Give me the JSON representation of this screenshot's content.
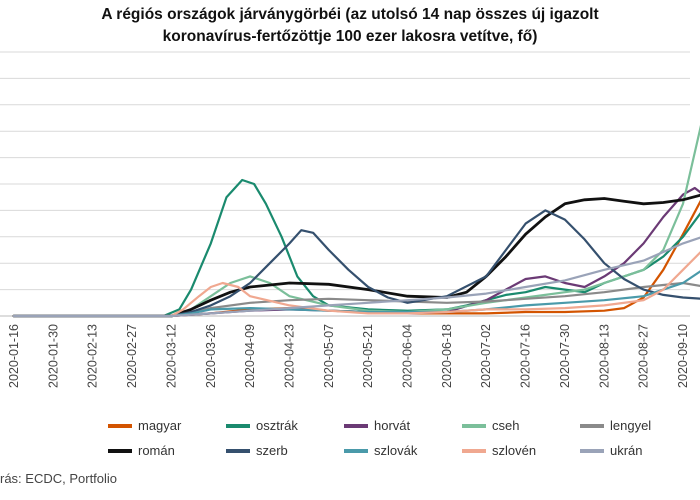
{
  "title_line1": "A régiós országok járványgörbéi (az utolsó 14 nap összes új igazolt",
  "title_line2": "koronavírus-fertőzöttje 100 ezer lakosra vetítve, fő)",
  "source": "rás: ECDC, Portfolio",
  "chart_data": {
    "type": "line",
    "categories": [
      "2020-01-16",
      "2020-01-30",
      "2020-02-13",
      "2020-02-27",
      "2020-03-12",
      "2020-03-26",
      "2020-04-09",
      "2020-04-23",
      "2020-05-07",
      "2020-05-21",
      "2020-06-04",
      "2020-06-18",
      "2020-07-02",
      "2020-07-16",
      "2020-07-30",
      "2020-08-13",
      "2020-08-27",
      "2020-09-10"
    ],
    "ylim": [
      0,
      200
    ],
    "grid": true,
    "legend_position": "bottom",
    "series": [
      {
        "name": "magyar",
        "color": "#d35400",
        "points": [
          [
            0,
            0
          ],
          [
            4,
            0
          ],
          [
            5,
            2
          ],
          [
            6,
            5
          ],
          [
            7,
            6
          ],
          [
            8,
            4
          ],
          [
            9,
            3
          ],
          [
            10,
            2
          ],
          [
            11,
            2
          ],
          [
            12,
            2
          ],
          [
            13,
            3
          ],
          [
            14,
            3
          ],
          [
            15,
            4
          ],
          [
            15.5,
            6
          ],
          [
            16,
            14
          ],
          [
            16.5,
            35
          ],
          [
            17,
            62
          ],
          [
            17.5,
            90
          ],
          [
            18,
            103
          ]
        ]
      },
      {
        "name": "osztrák",
        "color": "#1a8a6e",
        "points": [
          [
            0,
            0
          ],
          [
            3.8,
            0
          ],
          [
            4.2,
            5
          ],
          [
            4.5,
            20
          ],
          [
            5,
            55
          ],
          [
            5.4,
            90
          ],
          [
            5.8,
            103
          ],
          [
            6.1,
            100
          ],
          [
            6.4,
            85
          ],
          [
            6.8,
            60
          ],
          [
            7.2,
            30
          ],
          [
            7.6,
            15
          ],
          [
            8,
            8
          ],
          [
            9,
            5
          ],
          [
            10,
            4
          ],
          [
            11,
            5
          ],
          [
            11.5,
            8
          ],
          [
            12,
            12
          ],
          [
            12.5,
            16
          ],
          [
            13,
            18
          ],
          [
            13.5,
            22
          ],
          [
            14,
            20
          ],
          [
            14.5,
            18
          ],
          [
            15,
            25
          ],
          [
            15.5,
            30
          ],
          [
            16,
            35
          ],
          [
            16.5,
            45
          ],
          [
            17,
            60
          ],
          [
            17.5,
            80
          ],
          [
            17.7,
            103
          ]
        ]
      },
      {
        "name": "horvát",
        "color": "#6b3a75",
        "points": [
          [
            0,
            0
          ],
          [
            4,
            0
          ],
          [
            5,
            2
          ],
          [
            6,
            4
          ],
          [
            7,
            5
          ],
          [
            8,
            4
          ],
          [
            9,
            3
          ],
          [
            10,
            2
          ],
          [
            11,
            3
          ],
          [
            12,
            12
          ],
          [
            12.5,
            20
          ],
          [
            13,
            28
          ],
          [
            13.5,
            30
          ],
          [
            14,
            25
          ],
          [
            14.5,
            22
          ],
          [
            15,
            30
          ],
          [
            15.5,
            40
          ],
          [
            16,
            55
          ],
          [
            16.5,
            75
          ],
          [
            17,
            92
          ],
          [
            17.3,
            97
          ],
          [
            17.6,
            90
          ],
          [
            18,
            75
          ]
        ]
      },
      {
        "name": "cseh",
        "color": "#7bbf9a",
        "points": [
          [
            0,
            0
          ],
          [
            4,
            0
          ],
          [
            4.5,
            5
          ],
          [
            5,
            15
          ],
          [
            5.5,
            25
          ],
          [
            6,
            30
          ],
          [
            6.5,
            25
          ],
          [
            7,
            15
          ],
          [
            8,
            8
          ],
          [
            9,
            4
          ],
          [
            10,
            3
          ],
          [
            11,
            5
          ],
          [
            12,
            10
          ],
          [
            12.5,
            12
          ],
          [
            13,
            14
          ],
          [
            13.5,
            16
          ],
          [
            14,
            18
          ],
          [
            14.5,
            20
          ],
          [
            15,
            25
          ],
          [
            15.5,
            30
          ],
          [
            16,
            35
          ],
          [
            16.5,
            50
          ],
          [
            17,
            85
          ],
          [
            17.5,
            150
          ],
          [
            17.8,
            193
          ]
        ]
      },
      {
        "name": "lengyel",
        "color": "#8a8a8a",
        "points": [
          [
            0,
            0
          ],
          [
            4,
            0
          ],
          [
            4.5,
            2
          ],
          [
            5,
            6
          ],
          [
            6,
            10
          ],
          [
            7,
            12
          ],
          [
            8,
            13
          ],
          [
            9,
            12
          ],
          [
            10,
            11
          ],
          [
            11,
            10
          ],
          [
            12,
            11
          ],
          [
            13,
            13
          ],
          [
            14,
            15
          ],
          [
            15,
            18
          ],
          [
            16,
            22
          ],
          [
            17,
            25
          ],
          [
            18,
            20
          ]
        ]
      },
      {
        "name": "román",
        "color": "#111111",
        "points": [
          [
            0,
            0
          ],
          [
            4,
            0
          ],
          [
            4.5,
            5
          ],
          [
            5,
            12
          ],
          [
            5.5,
            18
          ],
          [
            6,
            22
          ],
          [
            7,
            25
          ],
          [
            8,
            24
          ],
          [
            9,
            20
          ],
          [
            10,
            15
          ],
          [
            11,
            14
          ],
          [
            11.5,
            18
          ],
          [
            12,
            30
          ],
          [
            12.5,
            45
          ],
          [
            13,
            62
          ],
          [
            13.5,
            75
          ],
          [
            14,
            85
          ],
          [
            14.5,
            88
          ],
          [
            15,
            89
          ],
          [
            15.5,
            87
          ],
          [
            16,
            85
          ],
          [
            16.5,
            86
          ],
          [
            17,
            88
          ],
          [
            17.5,
            92
          ],
          [
            18,
            90
          ]
        ]
      },
      {
        "name": "szerb",
        "color": "#35506e",
        "points": [
          [
            0,
            0
          ],
          [
            4,
            0
          ],
          [
            4.5,
            3
          ],
          [
            5,
            8
          ],
          [
            5.5,
            15
          ],
          [
            6,
            25
          ],
          [
            6.5,
            40
          ],
          [
            7,
            55
          ],
          [
            7.3,
            65
          ],
          [
            7.6,
            63
          ],
          [
            8,
            50
          ],
          [
            8.5,
            35
          ],
          [
            9,
            22
          ],
          [
            9.5,
            14
          ],
          [
            10,
            10
          ],
          [
            11,
            15
          ],
          [
            12,
            30
          ],
          [
            12.5,
            50
          ],
          [
            13,
            70
          ],
          [
            13.5,
            80
          ],
          [
            14,
            73
          ],
          [
            14.5,
            58
          ],
          [
            15,
            40
          ],
          [
            15.5,
            28
          ],
          [
            16,
            20
          ],
          [
            16.5,
            16
          ],
          [
            17,
            14
          ],
          [
            18,
            12
          ]
        ]
      },
      {
        "name": "szlovák",
        "color": "#4a9aaa",
        "points": [
          [
            0,
            0
          ],
          [
            4,
            0
          ],
          [
            4.5,
            2
          ],
          [
            5,
            5
          ],
          [
            6,
            6
          ],
          [
            7,
            5
          ],
          [
            8,
            4
          ],
          [
            9,
            3
          ],
          [
            10,
            3
          ],
          [
            11,
            3
          ],
          [
            12,
            5
          ],
          [
            13,
            8
          ],
          [
            14,
            10
          ],
          [
            15,
            12
          ],
          [
            16,
            15
          ],
          [
            16.5,
            20
          ],
          [
            17,
            25
          ],
          [
            17.5,
            35
          ],
          [
            18,
            38
          ]
        ]
      },
      {
        "name": "szlovén",
        "color": "#f0a890",
        "points": [
          [
            0,
            0
          ],
          [
            4,
            0
          ],
          [
            4.3,
            5
          ],
          [
            4.7,
            15
          ],
          [
            5,
            22
          ],
          [
            5.3,
            25
          ],
          [
            5.7,
            22
          ],
          [
            6,
            15
          ],
          [
            7,
            8
          ],
          [
            8,
            4
          ],
          [
            9,
            2
          ],
          [
            10,
            2
          ],
          [
            11,
            3
          ],
          [
            12,
            5
          ],
          [
            13,
            5
          ],
          [
            14,
            6
          ],
          [
            15,
            8
          ],
          [
            16,
            12
          ],
          [
            16.5,
            20
          ],
          [
            17,
            35
          ],
          [
            17.5,
            50
          ],
          [
            18,
            58
          ]
        ]
      },
      {
        "name": "ukrán",
        "color": "#9aa3b8",
        "points": [
          [
            0,
            0
          ],
          [
            4,
            0
          ],
          [
            5,
            2
          ],
          [
            6,
            4
          ],
          [
            7,
            6
          ],
          [
            8,
            8
          ],
          [
            9,
            10
          ],
          [
            10,
            12
          ],
          [
            11,
            14
          ],
          [
            12,
            17
          ],
          [
            13,
            22
          ],
          [
            14,
            27
          ],
          [
            15,
            35
          ],
          [
            16,
            42
          ],
          [
            17,
            55
          ],
          [
            17.5,
            60
          ],
          [
            18,
            65
          ]
        ]
      }
    ]
  }
}
